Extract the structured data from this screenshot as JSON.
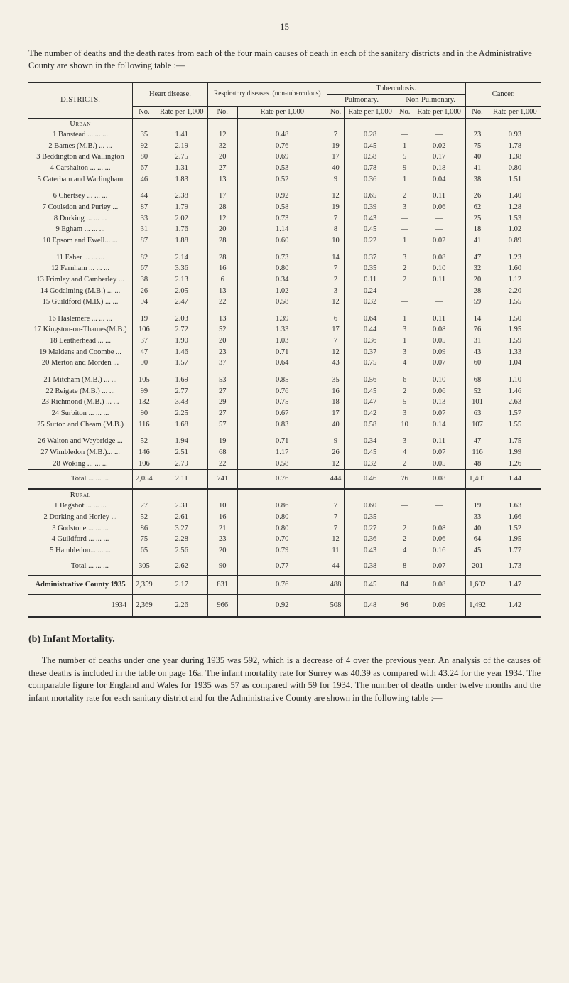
{
  "page_number": "15",
  "intro": "The number of deaths and the death rates from each of the four main causes of death in each of the sanitary districts and in the Administrative County are shown in the following table :—",
  "headers": {
    "districts": "DISTRICTS.",
    "heart": "Heart disease.",
    "resp": "Respiratory diseases. (non-tuberculous)",
    "tb": "Tuberculosis.",
    "tb_pulm": "Pulmonary.",
    "tb_non": "Non-Pulmonary.",
    "cancer": "Cancer.",
    "no": "No.",
    "rate": "Rate per 1,000"
  },
  "sections": {
    "urban": "Urban",
    "rural": "Rural"
  },
  "urban_rows": [
    {
      "id": "1",
      "name": "Banstead ...   ...   ...",
      "hd_no": "35",
      "hd_r": "1.41",
      "rd_no": "12",
      "rd_r": "0.48",
      "tp_no": "7",
      "tp_r": "0.28",
      "tn_no": "—",
      "tn_r": "—",
      "c_no": "23",
      "c_r": "0.93"
    },
    {
      "id": "2",
      "name": "Barnes (M.B.)   ...   ...",
      "hd_no": "92",
      "hd_r": "2.19",
      "rd_no": "32",
      "rd_r": "0.76",
      "tp_no": "19",
      "tp_r": "0.45",
      "tn_no": "1",
      "tn_r": "0.02",
      "c_no": "75",
      "c_r": "1.78"
    },
    {
      "id": "3",
      "name": "Beddington and Wallington",
      "hd_no": "80",
      "hd_r": "2.75",
      "rd_no": "20",
      "rd_r": "0.69",
      "tp_no": "17",
      "tp_r": "0.58",
      "tn_no": "5",
      "tn_r": "0.17",
      "c_no": "40",
      "c_r": "1.38"
    },
    {
      "id": "4",
      "name": "Carshalton ...   ...   ...",
      "hd_no": "67",
      "hd_r": "1.31",
      "rd_no": "27",
      "rd_r": "0.53",
      "tp_no": "40",
      "tp_r": "0.78",
      "tn_no": "9",
      "tn_r": "0.18",
      "c_no": "41",
      "c_r": "0.80"
    },
    {
      "id": "5",
      "name": "Caterham and Warlingham",
      "hd_no": "46",
      "hd_r": "1.83",
      "rd_no": "13",
      "rd_r": "0.52",
      "tp_no": "9",
      "tp_r": "0.36",
      "tn_no": "1",
      "tn_r": "0.04",
      "c_no": "38",
      "c_r": "1.51"
    },
    {
      "spacer": true
    },
    {
      "id": "6",
      "name": "Chertsey   ...   ...   ...",
      "hd_no": "44",
      "hd_r": "2.38",
      "rd_no": "17",
      "rd_r": "0.92",
      "tp_no": "12",
      "tp_r": "0.65",
      "tn_no": "2",
      "tn_r": "0.11",
      "c_no": "26",
      "c_r": "1.40"
    },
    {
      "id": "7",
      "name": "Coulsdon and Purley   ...",
      "hd_no": "87",
      "hd_r": "1.79",
      "rd_no": "28",
      "rd_r": "0.58",
      "tp_no": "19",
      "tp_r": "0.39",
      "tn_no": "3",
      "tn_r": "0.06",
      "c_no": "62",
      "c_r": "1.28"
    },
    {
      "id": "8",
      "name": "Dorking   ...   ...   ...",
      "hd_no": "33",
      "hd_r": "2.02",
      "rd_no": "12",
      "rd_r": "0.73",
      "tp_no": "7",
      "tp_r": "0.43",
      "tn_no": "—",
      "tn_r": "—",
      "c_no": "25",
      "c_r": "1.53"
    },
    {
      "id": "9",
      "name": "Egham   ...   ...   ...",
      "hd_no": "31",
      "hd_r": "1.76",
      "rd_no": "20",
      "rd_r": "1.14",
      "tp_no": "8",
      "tp_r": "0.45",
      "tn_no": "—",
      "tn_r": "—",
      "c_no": "18",
      "c_r": "1.02"
    },
    {
      "id": "10",
      "name": "Epsom and Ewell...   ...",
      "hd_no": "87",
      "hd_r": "1.88",
      "rd_no": "28",
      "rd_r": "0.60",
      "tp_no": "10",
      "tp_r": "0.22",
      "tn_no": "1",
      "tn_r": "0.02",
      "c_no": "41",
      "c_r": "0.89"
    },
    {
      "spacer": true
    },
    {
      "id": "11",
      "name": "Esher   ...   ...   ...",
      "hd_no": "82",
      "hd_r": "2.14",
      "rd_no": "28",
      "rd_r": "0.73",
      "tp_no": "14",
      "tp_r": "0.37",
      "tn_no": "3",
      "tn_r": "0.08",
      "c_no": "47",
      "c_r": "1.23"
    },
    {
      "id": "12",
      "name": "Farnham   ...   ...   ...",
      "hd_no": "67",
      "hd_r": "3.36",
      "rd_no": "16",
      "rd_r": "0.80",
      "tp_no": "7",
      "tp_r": "0.35",
      "tn_no": "2",
      "tn_r": "0.10",
      "c_no": "32",
      "c_r": "1.60"
    },
    {
      "id": "13",
      "name": "Frimley and Camberley  ...",
      "hd_no": "38",
      "hd_r": "2.13",
      "rd_no": "6",
      "rd_r": "0.34",
      "tp_no": "2",
      "tp_r": "0.11",
      "tn_no": "2",
      "tn_r": "0.11",
      "c_no": "20",
      "c_r": "1.12"
    },
    {
      "id": "14",
      "name": "Godalming (M.B.) ...   ...",
      "hd_no": "26",
      "hd_r": "2.05",
      "rd_no": "13",
      "rd_r": "1.02",
      "tp_no": "3",
      "tp_r": "0.24",
      "tn_no": "—",
      "tn_r": "—",
      "c_no": "28",
      "c_r": "2.20"
    },
    {
      "id": "15",
      "name": "Guildford (M.B.) ...   ...",
      "hd_no": "94",
      "hd_r": "2.47",
      "rd_no": "22",
      "rd_r": "0.58",
      "tp_no": "12",
      "tp_r": "0.32",
      "tn_no": "—",
      "tn_r": "—",
      "c_no": "59",
      "c_r": "1.55"
    },
    {
      "spacer": true
    },
    {
      "id": "16",
      "name": "Haslemere ...   ...   ...",
      "hd_no": "19",
      "hd_r": "2.03",
      "rd_no": "13",
      "rd_r": "1.39",
      "tp_no": "6",
      "tp_r": "0.64",
      "tn_no": "1",
      "tn_r": "0.11",
      "c_no": "14",
      "c_r": "1.50"
    },
    {
      "id": "17",
      "name": "Kingston-on-Thames(M.B.)",
      "hd_no": "106",
      "hd_r": "2.72",
      "rd_no": "52",
      "rd_r": "1.33",
      "tp_no": "17",
      "tp_r": "0.44",
      "tn_no": "3",
      "tn_r": "0.08",
      "c_no": "76",
      "c_r": "1.95"
    },
    {
      "id": "18",
      "name": "Leatherhead   ...   ...",
      "hd_no": "37",
      "hd_r": "1.90",
      "rd_no": "20",
      "rd_r": "1.03",
      "tp_no": "7",
      "tp_r": "0.36",
      "tn_no": "1",
      "tn_r": "0.05",
      "c_no": "31",
      "c_r": "1.59"
    },
    {
      "id": "19",
      "name": "Maldens and Coombe   ...",
      "hd_no": "47",
      "hd_r": "1.46",
      "rd_no": "23",
      "rd_r": "0.71",
      "tp_no": "12",
      "tp_r": "0.37",
      "tn_no": "3",
      "tn_r": "0.09",
      "c_no": "43",
      "c_r": "1.33"
    },
    {
      "id": "20",
      "name": "Merton and Morden   ...",
      "hd_no": "90",
      "hd_r": "1.57",
      "rd_no": "37",
      "rd_r": "0.64",
      "tp_no": "43",
      "tp_r": "0.75",
      "tn_no": "4",
      "tn_r": "0.07",
      "c_no": "60",
      "c_r": "1.04"
    },
    {
      "spacer": true
    },
    {
      "id": "21",
      "name": "Mitcham (M.B.)  ...   ...",
      "hd_no": "105",
      "hd_r": "1.69",
      "rd_no": "53",
      "rd_r": "0.85",
      "tp_no": "35",
      "tp_r": "0.56",
      "tn_no": "6",
      "tn_r": "0.10",
      "c_no": "68",
      "c_r": "1.10"
    },
    {
      "id": "22",
      "name": "Reigate (M.B.)   ...   ...",
      "hd_no": "99",
      "hd_r": "2.77",
      "rd_no": "27",
      "rd_r": "0.76",
      "tp_no": "16",
      "tp_r": "0.45",
      "tn_no": "2",
      "tn_r": "0.06",
      "c_no": "52",
      "c_r": "1.46"
    },
    {
      "id": "23",
      "name": "Richmond (M.B.) ...   ...",
      "hd_no": "132",
      "hd_r": "3.43",
      "rd_no": "29",
      "rd_r": "0.75",
      "tp_no": "18",
      "tp_r": "0.47",
      "tn_no": "5",
      "tn_r": "0.13",
      "c_no": "101",
      "c_r": "2.63"
    },
    {
      "id": "24",
      "name": "Surbiton   ...   ...   ...",
      "hd_no": "90",
      "hd_r": "2.25",
      "rd_no": "27",
      "rd_r": "0.67",
      "tp_no": "17",
      "tp_r": "0.42",
      "tn_no": "3",
      "tn_r": "0.07",
      "c_no": "63",
      "c_r": "1.57"
    },
    {
      "id": "25",
      "name": "Sutton and Cheam (M.B.)",
      "hd_no": "116",
      "hd_r": "1.68",
      "rd_no": "57",
      "rd_r": "0.83",
      "tp_no": "40",
      "tp_r": "0.58",
      "tn_no": "10",
      "tn_r": "0.14",
      "c_no": "107",
      "c_r": "1.55"
    },
    {
      "spacer": true
    },
    {
      "id": "26",
      "name": "Walton and Weybridge  ...",
      "hd_no": "52",
      "hd_r": "1.94",
      "rd_no": "19",
      "rd_r": "0.71",
      "tp_no": "9",
      "tp_r": "0.34",
      "tn_no": "3",
      "tn_r": "0.11",
      "c_no": "47",
      "c_r": "1.75"
    },
    {
      "id": "27",
      "name": "Wimbledon (M.B.)...   ...",
      "hd_no": "146",
      "hd_r": "2.51",
      "rd_no": "68",
      "rd_r": "1.17",
      "tp_no": "26",
      "tp_r": "0.45",
      "tn_no": "4",
      "tn_r": "0.07",
      "c_no": "116",
      "c_r": "1.99"
    },
    {
      "id": "28",
      "name": "Woking   ...   ...   ...",
      "hd_no": "106",
      "hd_r": "2.79",
      "rd_no": "22",
      "rd_r": "0.58",
      "tp_no": "12",
      "tp_r": "0.32",
      "tn_no": "2",
      "tn_r": "0.05",
      "c_no": "48",
      "c_r": "1.26"
    }
  ],
  "urban_total": {
    "label": "Total   ...   ...   ...",
    "hd_no": "2,054",
    "hd_r": "2.11",
    "rd_no": "741",
    "rd_r": "0.76",
    "tp_no": "444",
    "tp_r": "0.46",
    "tn_no": "76",
    "tn_r": "0.08",
    "c_no": "1,401",
    "c_r": "1.44"
  },
  "rural_rows": [
    {
      "id": "1",
      "name": "Bagshot   ...   ...   ...",
      "hd_no": "27",
      "hd_r": "2.31",
      "rd_no": "10",
      "rd_r": "0.86",
      "tp_no": "7",
      "tp_r": "0.60",
      "tn_no": "—",
      "tn_r": "—",
      "c_no": "19",
      "c_r": "1.63"
    },
    {
      "id": "2",
      "name": "Dorking and Horley   ...",
      "hd_no": "52",
      "hd_r": "2.61",
      "rd_no": "16",
      "rd_r": "0.80",
      "tp_no": "7",
      "tp_r": "0.35",
      "tn_no": "—",
      "tn_r": "—",
      "c_no": "33",
      "c_r": "1.66"
    },
    {
      "id": "3",
      "name": "Godstone   ...   ...   ...",
      "hd_no": "86",
      "hd_r": "3.27",
      "rd_no": "21",
      "rd_r": "0.80",
      "tp_no": "7",
      "tp_r": "0.27",
      "tn_no": "2",
      "tn_r": "0.08",
      "c_no": "40",
      "c_r": "1.52"
    },
    {
      "id": "4",
      "name": "Guildford ...   ...   ...",
      "hd_no": "75",
      "hd_r": "2.28",
      "rd_no": "23",
      "rd_r": "0.70",
      "tp_no": "12",
      "tp_r": "0.36",
      "tn_no": "2",
      "tn_r": "0.06",
      "c_no": "64",
      "c_r": "1.95"
    },
    {
      "id": "5",
      "name": "Hambledon...   ...   ...",
      "hd_no": "65",
      "hd_r": "2.56",
      "rd_no": "20",
      "rd_r": "0.79",
      "tp_no": "11",
      "tp_r": "0.43",
      "tn_no": "4",
      "tn_r": "0.16",
      "c_no": "45",
      "c_r": "1.77"
    }
  ],
  "rural_total": {
    "label": "Total   ...   ...   ...",
    "hd_no": "305",
    "hd_r": "2.62",
    "rd_no": "90",
    "rd_r": "0.77",
    "tp_no": "44",
    "tp_r": "0.38",
    "tn_no": "8",
    "tn_r": "0.07",
    "c_no": "201",
    "c_r": "1.73"
  },
  "admin_row": {
    "label": "Administrative County 1935",
    "hd_no": "2,359",
    "hd_r": "2.17",
    "rd_no": "831",
    "rd_r": "0.76",
    "tp_no": "488",
    "tp_r": "0.45",
    "tn_no": "84",
    "tn_r": "0.08",
    "c_no": "1,602",
    "c_r": "1.47"
  },
  "year_row": {
    "label": "1934",
    "hd_no": "2,369",
    "hd_r": "2.26",
    "rd_no": "966",
    "rd_r": "0.92",
    "tp_no": "508",
    "tp_r": "0.48",
    "tn_no": "96",
    "tn_r": "0.09",
    "c_no": "1,492",
    "c_r": "1.42"
  },
  "section_b": {
    "title": "(b) Infant Mortality.",
    "text": "The number of deaths under one year during 1935 was 592, which is a decrease of 4 over the previous year. An analysis of the causes of these deaths is included in the table on page 16a. The infant mortality rate for Surrey was 40.39 as compared with 43.24 for the year 1934. The comparable figure for England and Wales for 1935 was 57 as compared with 59 for 1934. The number of deaths under twelve months and the infant mortality rate for each sanitary district and for the Administrative County are shown in the following table :—"
  },
  "style": {
    "bg": "#f4f0e6",
    "text_color": "#2a2a2a",
    "border_color": "#2a2a2a",
    "body_font_size": 11.5,
    "table_font_size": 10.5,
    "title_font_size": 14
  }
}
